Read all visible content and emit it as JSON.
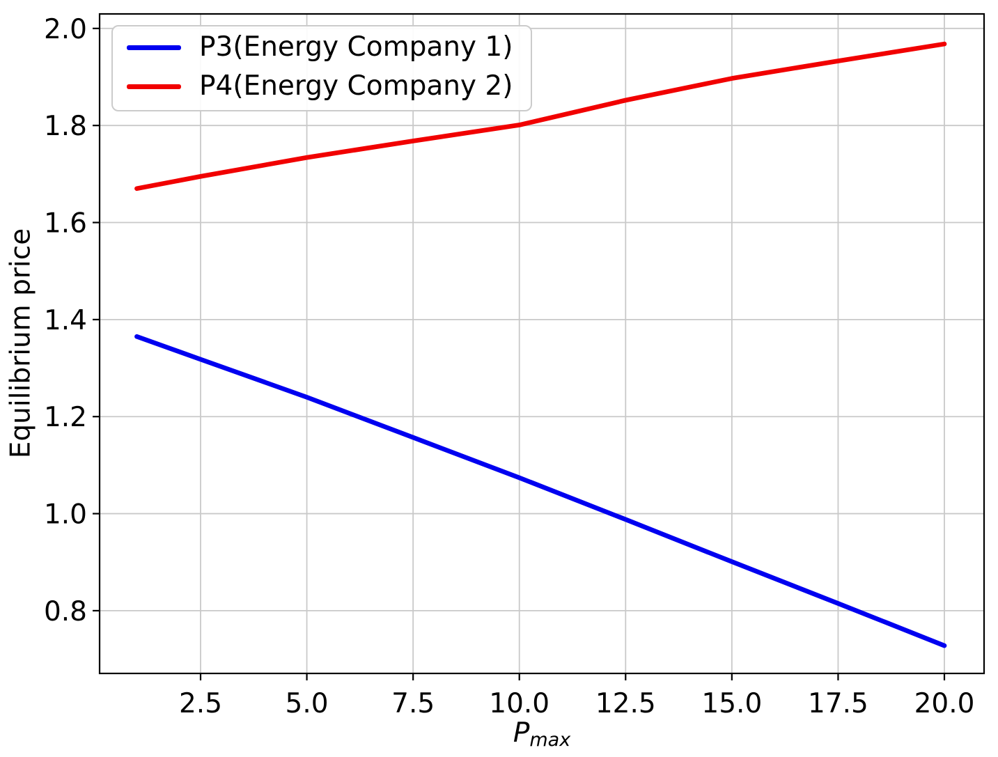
{
  "chart_data": {
    "type": "line",
    "title": "",
    "xlabel_base": "P",
    "xlabel_sub": "max",
    "ylabel": "Equilibrium price",
    "x": [
      1,
      2.5,
      5,
      7.5,
      10,
      12.5,
      15,
      17.5,
      20
    ],
    "series": [
      {
        "name": "P3(Energy Company 1)",
        "color": "#0000f0",
        "values": [
          1.365,
          1.318,
          1.24,
          1.157,
          1.074,
          0.988,
          0.901,
          0.815,
          0.728
        ]
      },
      {
        "name": "P4(Energy Company 2)",
        "color": "#f10000",
        "values": [
          1.67,
          1.695,
          1.734,
          1.768,
          1.801,
          1.852,
          1.897,
          1.933,
          1.968
        ]
      }
    ],
    "x_ticks": {
      "values": [
        2.5,
        5,
        7.5,
        10,
        12.5,
        15,
        17.5,
        20
      ],
      "labels": [
        "2.5",
        "5.0",
        "7.5",
        "10.0",
        "12.5",
        "15.0",
        "17.5",
        "20.0"
      ]
    },
    "y_ticks": {
      "values": [
        0.8,
        1.0,
        1.2,
        1.4,
        1.6,
        1.8,
        2.0
      ],
      "labels": [
        "0.8",
        "1.0",
        "1.2",
        "1.4",
        "1.6",
        "1.8",
        "2.0"
      ]
    },
    "xlim": [
      0.124,
      20.934
    ],
    "ylim": [
      0.6707,
      2.0299
    ],
    "grid": true,
    "grid_color": "#c9c9c9",
    "axis_color": "#000000",
    "legend_position": "upper left"
  }
}
